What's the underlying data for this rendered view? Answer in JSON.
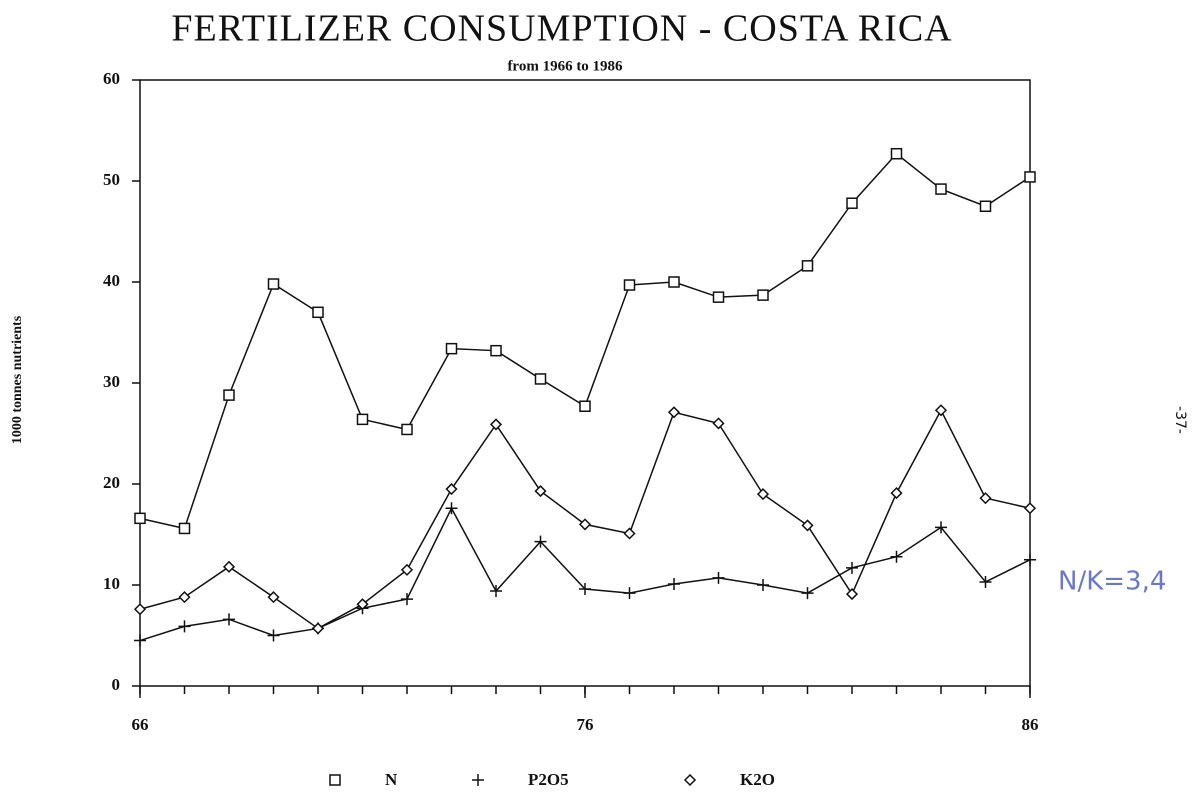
{
  "chart_data": {
    "type": "line",
    "title": "FERTILIZER CONSUMPTION - COSTA RICA",
    "subtitle": "from 1966 to 1986",
    "y_label": "1000 tonnes nutrients",
    "x": [
      66,
      67,
      68,
      69,
      70,
      71,
      72,
      73,
      74,
      75,
      76,
      77,
      78,
      79,
      80,
      81,
      82,
      83,
      84,
      85,
      86
    ],
    "series": [
      {
        "name": "N",
        "color": "#111111",
        "marker": "square",
        "values": [
          16.6,
          15.6,
          28.8,
          39.8,
          37.0,
          26.4,
          25.4,
          33.4,
          33.2,
          30.4,
          27.7,
          39.7,
          40.0,
          38.5,
          38.7,
          41.6,
          47.8,
          52.7,
          49.2,
          47.5,
          50.4
        ]
      },
      {
        "name": "P2O5",
        "color": "#111111",
        "marker": "plus",
        "values": [
          4.5,
          5.9,
          6.6,
          5.0,
          5.7,
          7.7,
          8.6,
          17.6,
          9.4,
          14.3,
          9.6,
          9.2,
          10.1,
          10.7,
          10.0,
          9.2,
          11.7,
          12.8,
          15.7,
          10.3,
          12.5
        ]
      },
      {
        "name": "K2O",
        "color": "#111111",
        "marker": "diamond",
        "values": [
          7.6,
          8.8,
          11.8,
          8.8,
          5.7,
          8.1,
          11.5,
          19.5,
          25.9,
          19.3,
          16.0,
          15.1,
          27.1,
          26.0,
          19.0,
          15.9,
          9.1,
          19.1,
          27.3,
          18.6,
          17.6
        ]
      }
    ],
    "xlim": [
      66,
      86
    ],
    "xticks": [
      66,
      76,
      86
    ],
    "ylim": [
      0,
      60
    ],
    "yticks": [
      0,
      10,
      20,
      30,
      40,
      50,
      60
    ],
    "annotations": [
      "-37-",
      "N/K=3,4"
    ]
  }
}
